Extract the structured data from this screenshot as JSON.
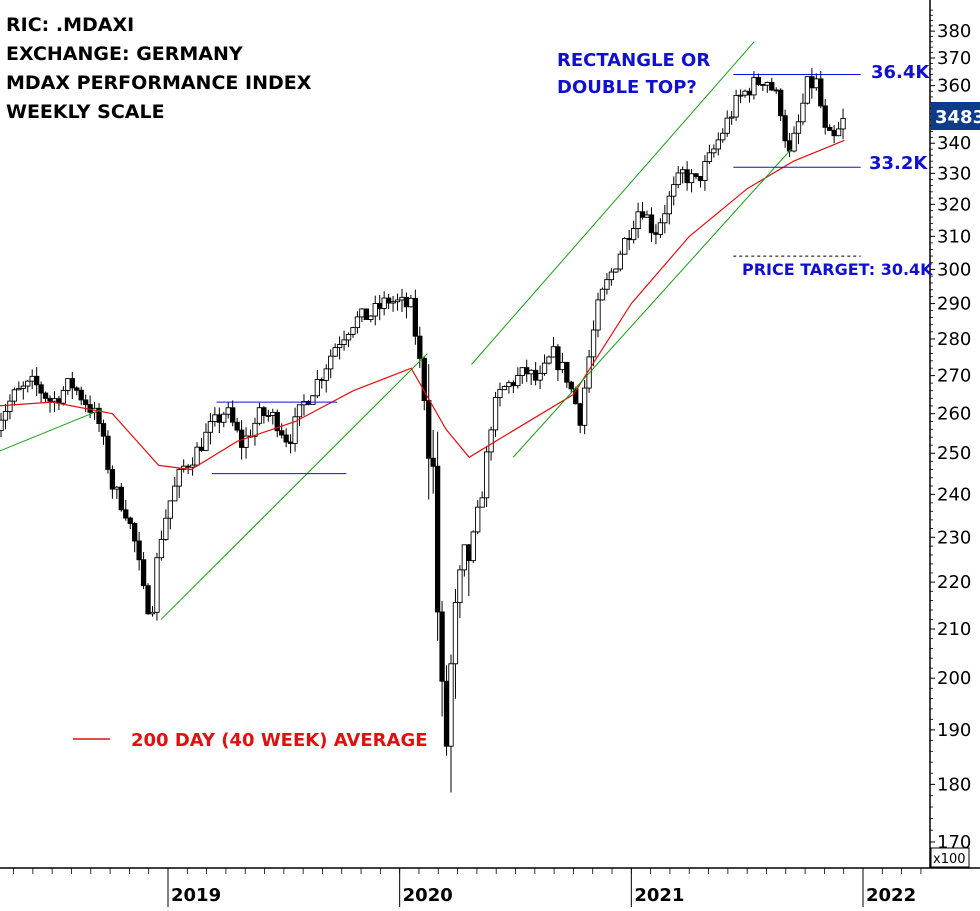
{
  "header": {
    "line1": "RIC: .MDAXI",
    "line2": "EXCHANGE: GERMANY",
    "line3": "MDAX PERFORMANCE INDEX",
    "line4": "WEEKLY SCALE"
  },
  "annotations": {
    "pattern_question_1": "RECTANGLE OR",
    "pattern_question_2": "DOUBLE TOP?",
    "resistance_label": "36.4K",
    "support_label": "33.2K",
    "target_label": "PRICE TARGET: 30.4K",
    "legend_ma": "200 DAY (40 WEEK) AVERAGE",
    "last_price": "3483",
    "scale_note": "x100"
  },
  "colors": {
    "candle": "#000000",
    "ma": "#e01010",
    "trend": "#11a011",
    "level": "#1010d0",
    "last_price_bg": "#0e3c8a"
  },
  "chart_data": {
    "type": "candlestick",
    "timeframe": "weekly",
    "y_tick_labels": [
      "170",
      "180",
      "190",
      "200",
      "210",
      "220",
      "230",
      "240",
      "250",
      "260",
      "270",
      "280",
      "290",
      "300",
      "310",
      "320",
      "330",
      "340",
      "350",
      "360",
      "370",
      "380"
    ],
    "x_tick_labels": [
      "2019",
      "2020",
      "2021",
      "2022"
    ],
    "ylim": [
      16800,
      38800
    ],
    "y_scale": "log",
    "y_unit": "x100",
    "series_approx_weekly_close": [
      [
        2018.26,
        25800
      ],
      [
        2018.34,
        26500
      ],
      [
        2018.42,
        26800
      ],
      [
        2018.5,
        26300
      ],
      [
        2018.58,
        26800
      ],
      [
        2018.66,
        26200
      ],
      [
        2018.7,
        25800
      ],
      [
        2018.76,
        24200
      ],
      [
        2018.82,
        23600
      ],
      [
        2018.86,
        22800
      ],
      [
        2018.9,
        21600
      ],
      [
        2018.93,
        21400
      ],
      [
        2018.96,
        22800
      ],
      [
        2019.0,
        23700
      ],
      [
        2019.06,
        24600
      ],
      [
        2019.12,
        25000
      ],
      [
        2019.18,
        25600
      ],
      [
        2019.25,
        26100
      ],
      [
        2019.32,
        25200
      ],
      [
        2019.4,
        26000
      ],
      [
        2019.46,
        25900
      ],
      [
        2019.52,
        25300
      ],
      [
        2019.58,
        26200
      ],
      [
        2019.66,
        27000
      ],
      [
        2019.72,
        27800
      ],
      [
        2019.8,
        28500
      ],
      [
        2019.88,
        28700
      ],
      [
        2019.95,
        29100
      ],
      [
        2020.05,
        28900
      ],
      [
        2020.1,
        26800
      ],
      [
        2020.15,
        24200
      ],
      [
        2020.17,
        20200
      ],
      [
        2020.2,
        18600
      ],
      [
        2020.23,
        20800
      ],
      [
        2020.27,
        22100
      ],
      [
        2020.32,
        23000
      ],
      [
        2020.36,
        24200
      ],
      [
        2020.4,
        26000
      ],
      [
        2020.44,
        26600
      ],
      [
        2020.5,
        26900
      ],
      [
        2020.55,
        27100
      ],
      [
        2020.6,
        26800
      ],
      [
        2020.66,
        27600
      ],
      [
        2020.72,
        27000
      ],
      [
        2020.78,
        25900
      ],
      [
        2020.82,
        27600
      ],
      [
        2020.86,
        29000
      ],
      [
        2020.92,
        30000
      ],
      [
        2020.98,
        31000
      ],
      [
        2021.04,
        32000
      ],
      [
        2021.1,
        31100
      ],
      [
        2021.16,
        32100
      ],
      [
        2021.22,
        33000
      ],
      [
        2021.28,
        32700
      ],
      [
        2021.34,
        33500
      ],
      [
        2021.4,
        34500
      ],
      [
        2021.46,
        35500
      ],
      [
        2021.52,
        36000
      ],
      [
        2021.58,
        36300
      ],
      [
        2021.64,
        35400
      ],
      [
        2021.68,
        33500
      ],
      [
        2021.72,
        34600
      ],
      [
        2021.76,
        36000
      ],
      [
        2021.8,
        36100
      ],
      [
        2021.84,
        34200
      ],
      [
        2021.88,
        34100
      ],
      [
        2021.92,
        34830
      ]
    ],
    "series": [
      {
        "name": "200 DAY (40 WEEK) AVERAGE",
        "type": "line",
        "values_approx": [
          [
            2018.26,
            26200
          ],
          [
            2018.5,
            26300
          ],
          [
            2018.76,
            26000
          ],
          [
            2018.96,
            24700
          ],
          [
            2019.1,
            24600
          ],
          [
            2019.3,
            25300
          ],
          [
            2019.55,
            25800
          ],
          [
            2019.8,
            26600
          ],
          [
            2020.05,
            27200
          ],
          [
            2020.2,
            25600
          ],
          [
            2020.3,
            24900
          ],
          [
            2020.5,
            25600
          ],
          [
            2020.75,
            26500
          ],
          [
            2021.0,
            29000
          ],
          [
            2021.25,
            31000
          ],
          [
            2021.5,
            32500
          ],
          [
            2021.7,
            33400
          ],
          [
            2021.92,
            34100
          ]
        ]
      }
    ],
    "horizontal_levels": [
      {
        "label": "36.4K",
        "value": 36400
      },
      {
        "label": "33.2K",
        "value": 33200
      },
      {
        "label": "PRICE TARGET: 30.4K",
        "value": 30400,
        "style": "dashed"
      }
    ]
  }
}
